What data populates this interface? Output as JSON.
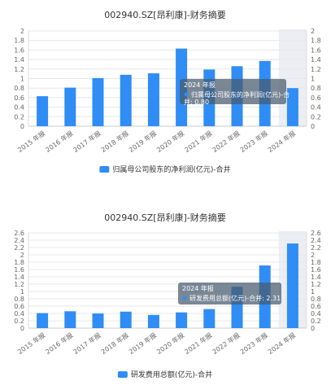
{
  "chart_data": [
    {
      "type": "bar",
      "title": "002940.SZ[昂利康]-财务摘要",
      "categories": [
        "2015 年报",
        "2016 年报",
        "2017 年报",
        "2018 年报",
        "2019 年报",
        "2020 年报",
        "2021 年报",
        "2022 年报",
        "2023 年报",
        "2024 年报"
      ],
      "series": [
        {
          "name": "归属母公司股东的净利润(亿元)-合并",
          "values": [
            0.63,
            0.81,
            1.01,
            1.08,
            1.11,
            1.63,
            1.19,
            1.26,
            1.37,
            0.8
          ]
        }
      ],
      "ylim": [
        0,
        2
      ],
      "yticks": [
        "0",
        "0.2",
        "0.4",
        "0.6",
        "0.8",
        "1",
        "1.2",
        "1.4",
        "1.6",
        "1.8",
        "2"
      ],
      "highlight_category": "2024 年报",
      "tooltip": {
        "title": "2024 年报",
        "line1": "归属母公司股东的净利润(亿元)-合",
        "line2": "并: 0.80"
      },
      "legend_position": "bottom",
      "color": "#2f8df5"
    },
    {
      "type": "bar",
      "title": "002940.SZ[昂利康]-财务摘要",
      "categories": [
        "2015 年报",
        "2016 年报",
        "2017 年报",
        "2018 年报",
        "2019 年报",
        "2020 年报",
        "2021 年报",
        "2022 年报",
        "2023 年报",
        "2024 年报"
      ],
      "series": [
        {
          "name": "研发费用总额(亿元)-合并",
          "values": [
            0.41,
            0.46,
            0.4,
            0.45,
            0.36,
            0.43,
            0.52,
            1.13,
            1.71,
            2.31
          ]
        }
      ],
      "ylim": [
        0,
        2.6
      ],
      "yticks": [
        "0",
        "0.2",
        "0.4",
        "0.6",
        "0.8",
        "1",
        "1.2",
        "1.4",
        "1.6",
        "1.8",
        "2",
        "2.2",
        "2.4",
        "2.6"
      ],
      "highlight_category": "2024 年报",
      "tooltip": {
        "title": "2024 年报",
        "line1": "研发费用总额(亿元)-合并: 2.31",
        "line2": ""
      },
      "legend_position": "bottom",
      "color": "#2f8df5"
    }
  ]
}
